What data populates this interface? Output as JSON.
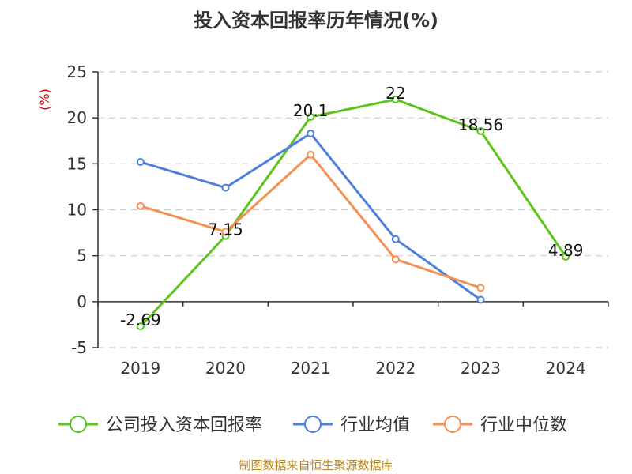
{
  "chart_data": {
    "type": "line",
    "title": "投入资本回报率历年情况(%)",
    "unit_label": "(%)",
    "categories": [
      "2019",
      "2020",
      "2021",
      "2022",
      "2023",
      "2024"
    ],
    "ylim": [
      -5,
      25
    ],
    "yticks": [
      -5,
      0,
      5,
      10,
      15,
      20,
      25
    ],
    "grid": true,
    "legend_position": "bottom",
    "series": [
      {
        "name": "公司投入资本回报率",
        "color": "#5cc41c",
        "values": [
          -2.69,
          7.15,
          20.1,
          22,
          18.56,
          4.89
        ],
        "data_labels": [
          "-2.69",
          "7.15",
          "20.1",
          "22",
          "18.56",
          "4.89"
        ]
      },
      {
        "name": "行业均值",
        "color": "#4f7fdc",
        "values": [
          15.2,
          12.4,
          18.3,
          6.8,
          0.2,
          null
        ]
      },
      {
        "name": "行业中位数",
        "color": "#f58f52",
        "values": [
          10.4,
          7.6,
          16.0,
          4.6,
          1.5,
          null
        ]
      }
    ],
    "source": "制图数据来自恒生聚源数据库"
  }
}
